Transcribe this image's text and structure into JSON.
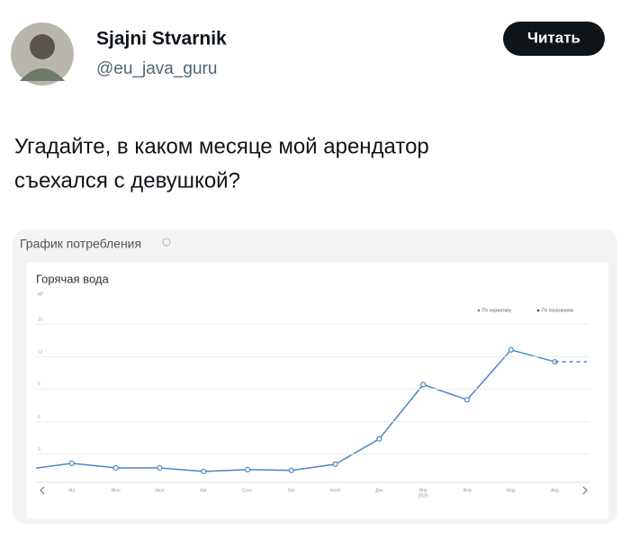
{
  "header": {
    "name": "Sjajni Stvarnik",
    "handle": "@eu_java_guru",
    "button": "Читать"
  },
  "tweet": {
    "lines": [
      "Угадайте, в каком месяце мой арендатор",
      "съехался с девушкой?"
    ]
  },
  "card": {
    "title": "График потребления"
  },
  "chart_data": {
    "type": "line",
    "title": "Горячая вода",
    "y_unit": "м³",
    "categories": [
      null,
      "Ма",
      "Июн",
      "Июл",
      "Авг",
      "Сент",
      "Окт",
      "Нояб",
      "Дек",
      "Янв",
      "Фев",
      "Мар",
      "Апр",
      null
    ],
    "year_label": "2025",
    "series": [
      {
        "name": "По показаниям",
        "color": "#4a86c5",
        "values": [
          1.2,
          1.75,
          1.33,
          1.33,
          1.0,
          1.17,
          1.1,
          1.67,
          4.0,
          9.0,
          7.6,
          12.2,
          11.1,
          null
        ]
      },
      {
        "name": "По нормативу",
        "color": "#4a86c5",
        "values": [
          null,
          null,
          null,
          null,
          null,
          null,
          null,
          null,
          null,
          null,
          null,
          null,
          11.1,
          11.1
        ]
      }
    ],
    "legend_colors": [
      "#3d5a80",
      "#4a86c5"
    ],
    "ylim": [
      0,
      15
    ],
    "yticks": [
      3,
      6,
      9,
      12,
      15
    ],
    "grid": true
  }
}
